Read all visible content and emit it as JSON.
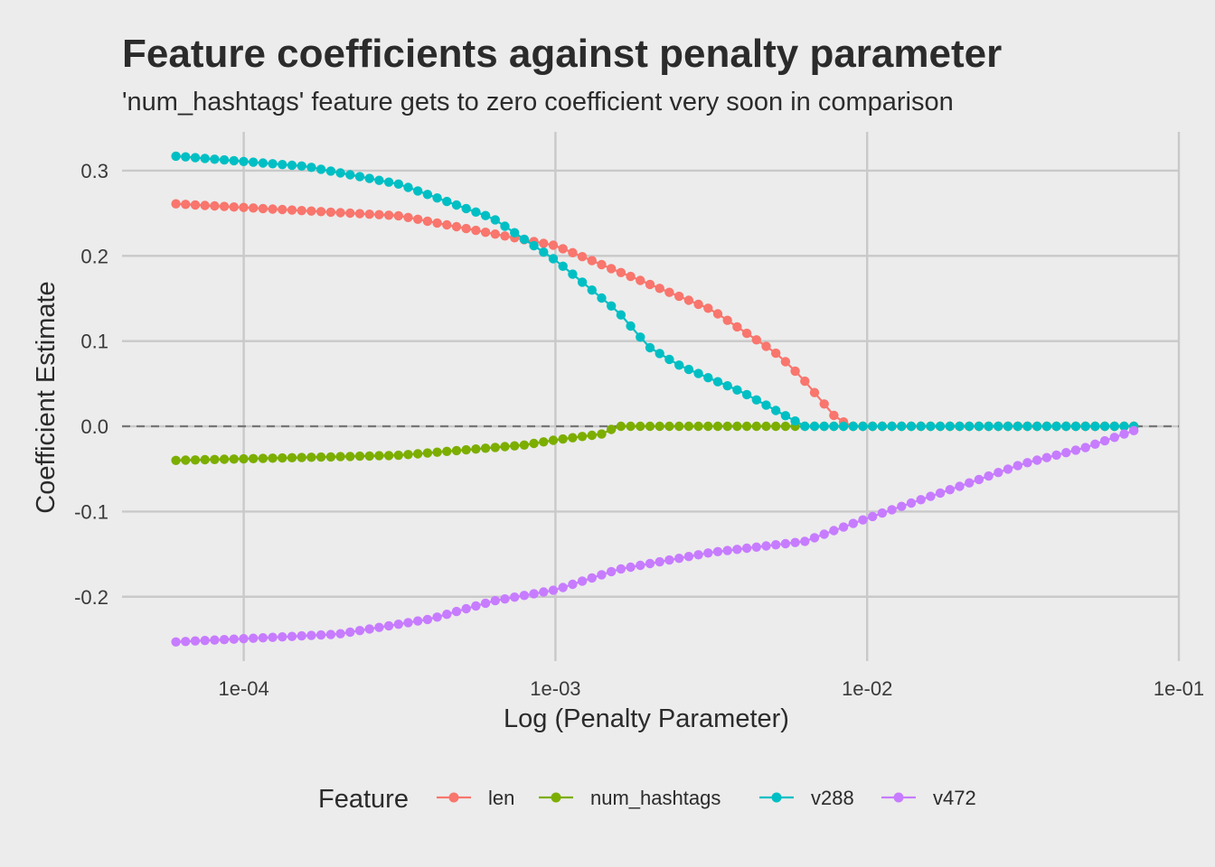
{
  "chart_data": {
    "type": "line",
    "title": "Feature coefficients against penalty parameter",
    "subtitle": "'num_hashtags' feature gets to zero coefficient very soon in comparison",
    "xlabel": "Log (Penalty Parameter)",
    "ylabel": "Coefficient Estimate",
    "x_scale": "log10",
    "xlim": [
      4.07e-05,
      0.1
    ],
    "ylim": [
      -0.2755,
      0.3455
    ],
    "x_ticks": [
      0.0001,
      0.001,
      0.01,
      0.1
    ],
    "x_tick_labels": [
      "1e-04",
      "1e-03",
      "1e-02",
      "1e-01"
    ],
    "y_ticks": [
      -0.2,
      -0.1,
      0.0,
      0.1,
      0.2,
      0.3
    ],
    "y_tick_labels": [
      "-0.2",
      "-0.1",
      "0.0",
      "0.1",
      "0.2",
      "0.3"
    ],
    "grid": true,
    "reference_line": {
      "y": 0,
      "style": "dashed"
    },
    "x_range": [
      6.06e-05,
      0.0717
    ],
    "n_points": 100,
    "legend": {
      "title": "Feature",
      "position": "bottom"
    },
    "series": [
      {
        "name": "len",
        "color": "#F8766D",
        "profile": [
          [
            -4.2175,
            0.261
          ],
          [
            -3.5,
            0.247
          ],
          [
            -3.0,
            0.212
          ],
          [
            -2.5,
            0.137
          ],
          [
            -2.3,
            0.088
          ],
          [
            -2.2,
            0.053
          ],
          [
            -2.25,
            0.072
          ],
          [
            -2.1,
            0.01
          ],
          [
            -2.05,
            0.0
          ],
          [
            -1.144,
            0.0
          ]
        ]
      },
      {
        "name": "num_hashtags",
        "color": "#7CAE00",
        "profile": [
          [
            -4.2175,
            -0.04
          ],
          [
            -3.5,
            -0.034
          ],
          [
            -3.1,
            -0.022
          ],
          [
            -3.0,
            -0.016
          ],
          [
            -2.85,
            -0.009
          ],
          [
            -2.8,
            0.0
          ],
          [
            -1.144,
            0.0
          ]
        ]
      },
      {
        "name": "v288",
        "color": "#00BFC4",
        "profile": [
          [
            -4.2175,
            0.317
          ],
          [
            -3.8,
            0.305
          ],
          [
            -3.5,
            0.284
          ],
          [
            -3.2,
            0.244
          ],
          [
            -3.0,
            0.195
          ],
          [
            -2.8,
            0.135
          ],
          [
            -2.7,
            0.093
          ],
          [
            -2.6,
            0.071
          ],
          [
            -2.4,
            0.04
          ],
          [
            -2.25,
            0.01
          ],
          [
            -2.2,
            0.0
          ],
          [
            -1.144,
            0.0
          ]
        ]
      },
      {
        "name": "v472",
        "color": "#C77CFF",
        "profile": [
          [
            -4.2175,
            -0.253
          ],
          [
            -3.7,
            -0.244
          ],
          [
            -3.4,
            -0.226
          ],
          [
            -3.2,
            -0.205
          ],
          [
            -3.0,
            -0.192
          ],
          [
            -2.8,
            -0.168
          ],
          [
            -2.5,
            -0.148
          ],
          [
            -2.2,
            -0.135
          ],
          [
            -2.0,
            -0.108
          ],
          [
            -1.7,
            -0.07
          ],
          [
            -1.5,
            -0.044
          ],
          [
            -1.3,
            -0.025
          ],
          [
            -1.144,
            -0.005
          ]
        ]
      }
    ]
  }
}
